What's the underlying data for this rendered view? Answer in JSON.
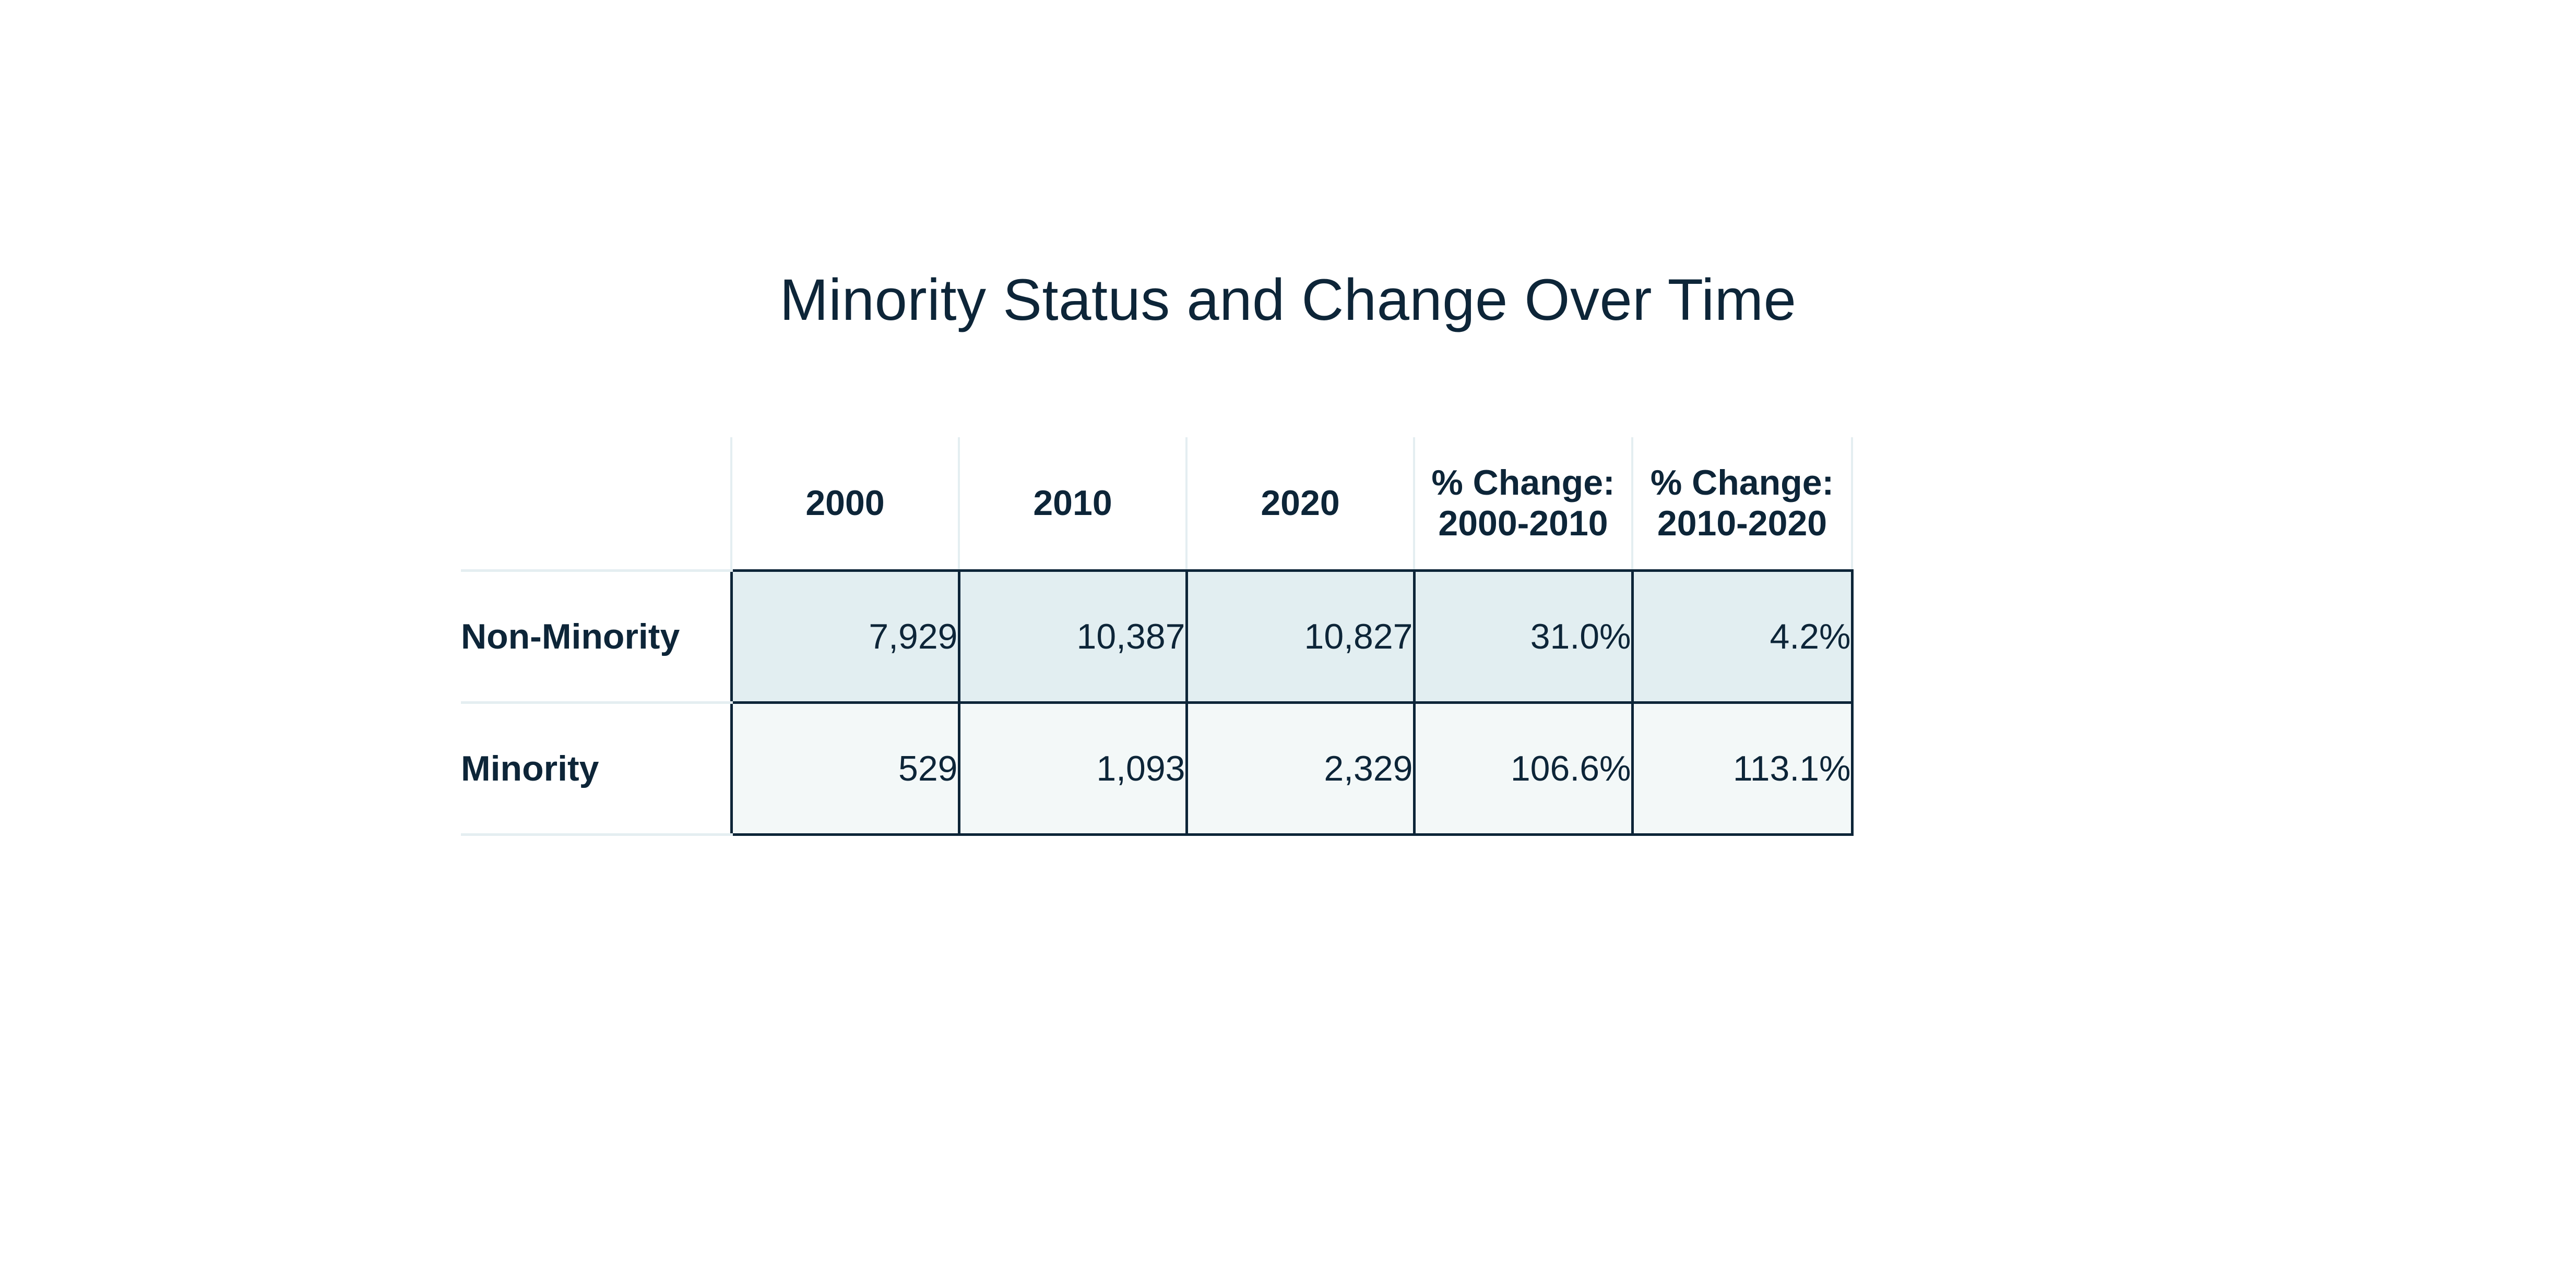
{
  "title": "Minority Status and Change Over Time",
  "table": {
    "columns": {
      "y2000": "2000",
      "y2010": "2010",
      "y2020": "2020",
      "change_2000_2010_line1": "% Change:",
      "change_2000_2010_line2": "2000-2010",
      "change_2010_2020_line1": "% Change:",
      "change_2010_2020_line2": "2010-2020"
    },
    "rows": [
      {
        "label": "Non-Minority",
        "y2000": "7,929",
        "y2010": "10,387",
        "y2020": "10,827",
        "change_2000_2010": "31.0%",
        "change_2010_2020": "4.2%"
      },
      {
        "label": "Minority",
        "y2000": "529",
        "y2010": "1,093",
        "y2020": "2,329",
        "change_2000_2010": "106.6%",
        "change_2010_2020": "113.1%"
      }
    ]
  },
  "colors": {
    "text": "#0d2538",
    "row_nonminority_fill": "#e2eef1",
    "row_minority_fill": "#f3f8f8",
    "light_gridline": "#e4eef1",
    "dark_border": "#0d2538"
  }
}
